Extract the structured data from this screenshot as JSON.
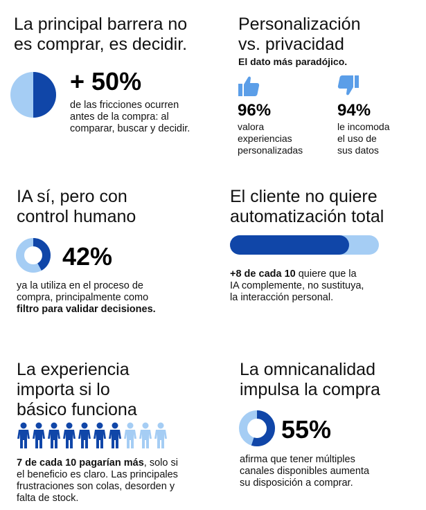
{
  "colors": {
    "dark_blue": "#1046a8",
    "light_blue": "#a5cdf4"
  },
  "s1": {
    "title_l1": "La principal barrera no",
    "title_l2": "es comprar, es decidir.",
    "stat": "+ 50%",
    "desc_l1": "de las fricciones ocurren",
    "desc_l2": "antes de la compra: al",
    "desc_l3": "comparar, buscar y decidir.",
    "share": 0.5
  },
  "s2": {
    "title_l1": "Personalización",
    "title_l2": "vs. privacidad",
    "subtitle": "El dato más paradójico.",
    "left": {
      "icon": "thumbs-up",
      "pct": "96%",
      "l1": "valora",
      "l2": "experiencias",
      "l3": "personalizadas"
    },
    "right": {
      "icon": "thumbs-down",
      "pct": "94%",
      "l1": "le incomoda",
      "l2": "el uso de",
      "l3": "sus datos"
    }
  },
  "s3": {
    "title_l1": "IA sí, pero con",
    "title_l2": "control humano",
    "stat": "42%",
    "share": 0.42,
    "desc_l1": "ya la utiliza en el proceso de",
    "desc_l2": "compra, principalmente como",
    "desc_l3": "filtro para validar decisiones."
  },
  "s4": {
    "title_l1": "El cliente no quiere",
    "title_l2": "automatización total",
    "bar_fill": 0.8,
    "desc_bold": "+8 de cada 10",
    "desc_l1_rest": " quiere que la",
    "desc_l2": "IA complemente, no sustituya,",
    "desc_l3": "la interacción personal."
  },
  "s5": {
    "title_l1": "La experiencia",
    "title_l2": "importa si lo",
    "title_l3": "básico funciona",
    "people_total": 10,
    "people_highlight": 7,
    "desc_bold": "7 de cada 10 pagarían más",
    "desc_l1_rest": ", solo si",
    "desc_l2": "el beneficio es claro. Las principales",
    "desc_l3": "frustraciones son colas, desorden y",
    "desc_l4": "falta de stock."
  },
  "s6": {
    "title_l1": "La omnicanalidad",
    "title_l2": "impulsa la compra",
    "stat": "55%",
    "share": 0.55,
    "desc_l1": "afirma que tener múltiples",
    "desc_l2": "canales disponibles aumenta",
    "desc_l3": "su disposición a comprar."
  }
}
